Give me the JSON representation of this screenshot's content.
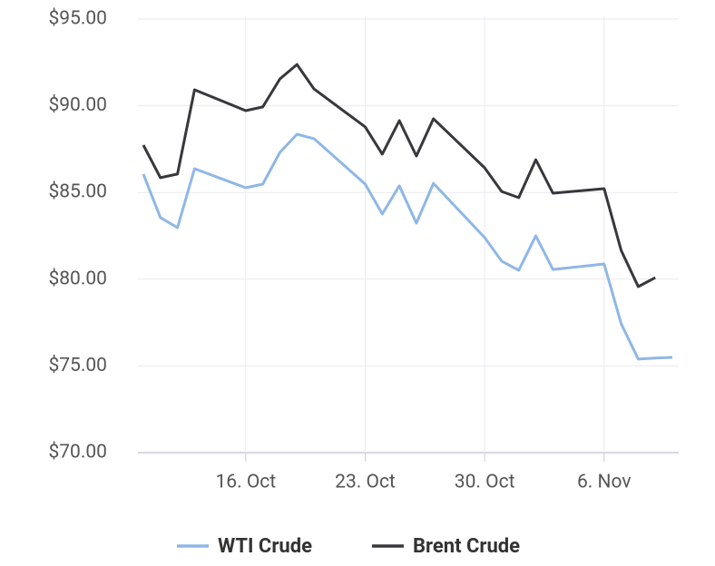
{
  "chart_data": {
    "type": "line",
    "x": [
      "10. Oct",
      "11. Oct",
      "12. Oct",
      "13. Oct",
      "16. Oct",
      "17. Oct",
      "18. Oct",
      "19. Oct",
      "20. Oct",
      "23. Oct",
      "24. Oct",
      "25. Oct",
      "26. Oct",
      "27. Oct",
      "30. Oct",
      "31. Oct",
      "1. Nov",
      "2. Nov",
      "3. Nov",
      "6. Nov",
      "7. Nov",
      "8. Nov",
      "9. Nov",
      "10. Nov"
    ],
    "series": [
      {
        "name": "WTI Crude",
        "color": "#8fb7e6",
        "values": [
          86.06,
          83.55,
          82.97,
          86.37,
          85.27,
          85.48,
          87.31,
          88.36,
          88.1,
          85.48,
          83.76,
          85.38,
          83.23,
          85.53,
          82.4,
          81.04,
          80.51,
          82.5,
          80.56,
          80.88,
          77.43,
          75.39,
          75.45,
          75.49
        ]
      },
      {
        "name": "Brent Crude",
        "color": "#38383c",
        "values": [
          87.73,
          85.85,
          86.06,
          90.92,
          89.72,
          89.93,
          91.55,
          92.38,
          90.97,
          88.78,
          87.21,
          89.14,
          87.1,
          89.25,
          86.42,
          85.06,
          84.7,
          86.89,
          84.96,
          85.22,
          81.66,
          79.57,
          80.09,
          null
        ]
      }
    ],
    "xlim": [
      "10. Oct",
      "10. Nov"
    ],
    "xticks": [
      "16. Oct",
      "23. Oct",
      "30. Oct",
      "6. Nov"
    ],
    "ylim": [
      70,
      95
    ],
    "yticks": [
      {
        "value": 70,
        "label": "$70.00"
      },
      {
        "value": 75,
        "label": "$75.00"
      },
      {
        "value": 80,
        "label": "$80.00"
      },
      {
        "value": 85,
        "label": "$85.00"
      },
      {
        "value": 90,
        "label": "$90.00"
      },
      {
        "value": 95,
        "label": "$95.00"
      }
    ],
    "grid": true
  }
}
